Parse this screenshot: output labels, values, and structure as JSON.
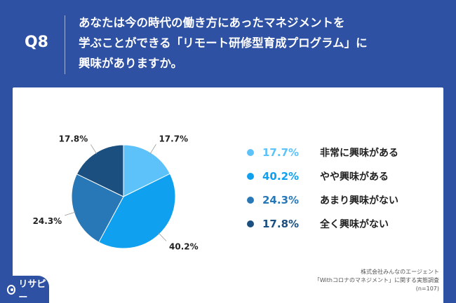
{
  "header": {
    "question_label": "Q8",
    "question_lines": [
      "あなたは今の時代の働き方にあったマネジメントを",
      "学ぶことができる「リモート研修型育成プログラム」に",
      "興味がありますか。"
    ]
  },
  "colors": {
    "background": "#2f51a3",
    "slices": [
      "#5ec2fa",
      "#0fa0f0",
      "#2878b8",
      "#1a4f80"
    ]
  },
  "chart_data": {
    "type": "pie",
    "categories": [
      "非常に興味がある",
      "やや興味がある",
      "あまり興味がない",
      "全く興味がない"
    ],
    "values": [
      17.7,
      40.2,
      24.3,
      17.8
    ],
    "value_labels": [
      "17.7%",
      "40.2%",
      "24.3%",
      "17.8%"
    ],
    "legend_placement": "right",
    "start": "12 o'clock, clockwise"
  },
  "source": {
    "lines": [
      "株式会社みんなのエージェント",
      "「Withコロナのマネジメント」に関する実態調査",
      "(n=107)"
    ]
  },
  "logo": {
    "text": "リサピー"
  }
}
